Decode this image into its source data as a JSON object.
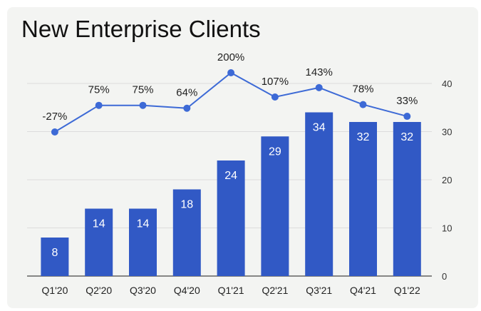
{
  "chart_data": {
    "type": "bar",
    "title": "New Enterprise Clients",
    "categories": [
      "Q1'20",
      "Q2'20",
      "Q3'20",
      "Q4'20",
      "Q1'21",
      "Q2'21",
      "Q3'21",
      "Q4'21",
      "Q1'22"
    ],
    "series": [
      {
        "type": "bar",
        "axis": "right",
        "values": [
          8,
          14,
          14,
          18,
          24,
          29,
          34,
          32,
          32
        ],
        "color": "#3159c5"
      },
      {
        "type": "line",
        "axis": "hidden",
        "values": [
          -27,
          75,
          75,
          64,
          200,
          107,
          143,
          78,
          33
        ],
        "labels": [
          "-27%",
          "75%",
          "75%",
          "64%",
          "200%",
          "107%",
          "143%",
          "78%",
          "33%"
        ],
        "color": "#3d6ad6"
      }
    ],
    "y_right": {
      "ticks": [
        0,
        10,
        20,
        30,
        40
      ],
      "ylim": [
        0,
        40
      ]
    },
    "grid": true,
    "legend": "none"
  }
}
